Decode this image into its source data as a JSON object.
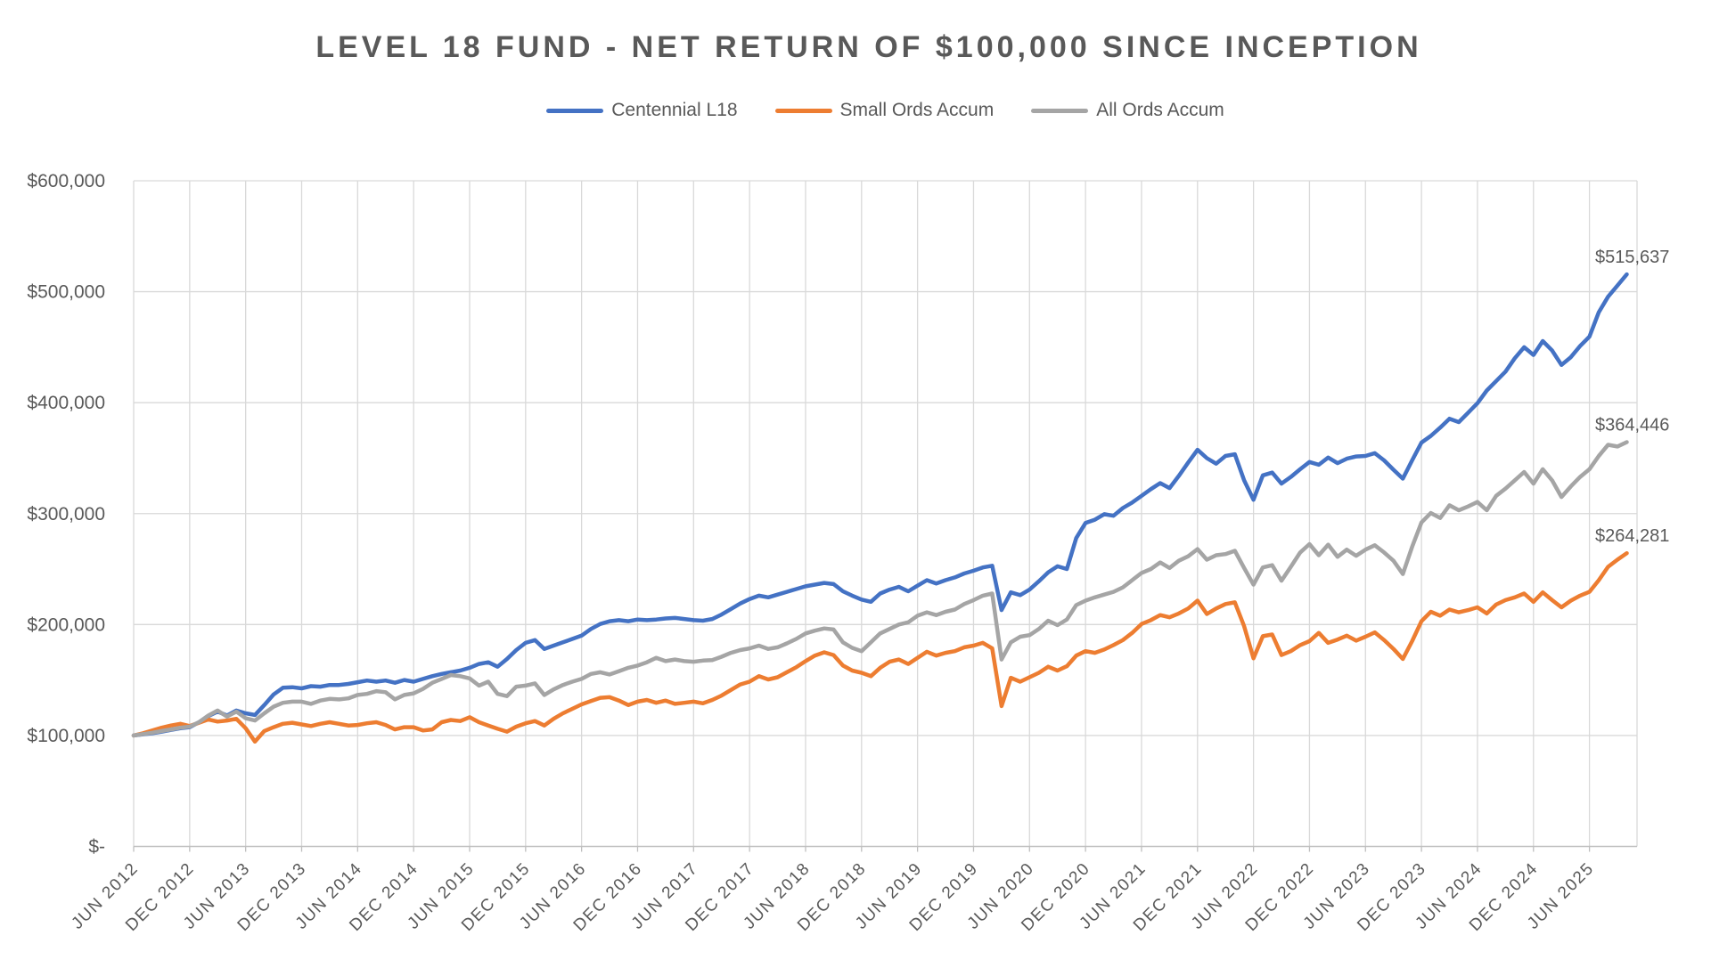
{
  "title": "LEVEL 18 FUND - NET RETURN OF $100,000 SINCE INCEPTION",
  "legend": [
    {
      "label": "Centennial L18",
      "color": "#4472C4"
    },
    {
      "label": "Small Ords Accum",
      "color": "#ED7D31"
    },
    {
      "label": "All Ords Accum",
      "color": "#A5A5A5"
    }
  ],
  "chart_data": {
    "type": "line",
    "title": "LEVEL 18 FUND - NET RETURN OF $100,000 SINCE INCEPTION",
    "ylabel": "",
    "xlabel": "",
    "ylim": [
      0,
      600000
    ],
    "grid": true,
    "legend_position": "top",
    "x_sampling": "monthly from JUN 2012 to OCT 2025",
    "y_ticks": [
      {
        "label": "$600,000",
        "value": 600000
      },
      {
        "label": "$500,000",
        "value": 500000
      },
      {
        "label": "$400,000",
        "value": 400000
      },
      {
        "label": "$300,000",
        "value": 300000
      },
      {
        "label": "$200,000",
        "value": 200000
      },
      {
        "label": "$100,000",
        "value": 100000
      },
      {
        "label": "$-",
        "value": 0
      }
    ],
    "x_tick_labels": [
      "JUN 2012",
      "DEC 2012",
      "JUN 2013",
      "DEC 2013",
      "JUN 2014",
      "DEC 2014",
      "JUN 2015",
      "DEC 2015",
      "JUN 2016",
      "DEC 2016",
      "JUN 2017",
      "DEC 2017",
      "JUN 2018",
      "DEC 2018",
      "JUN 2019",
      "DEC 2019",
      "JUN 2020",
      "DEC 2020",
      "JUN 2021",
      "DEC 2021",
      "JUN 2022",
      "DEC 2022",
      "JUN 2023",
      "DEC 2023",
      "JUN 2024",
      "DEC 2024",
      "JUN 2025"
    ],
    "series": [
      {
        "name": "Centennial L18",
        "color": "#4472C4",
        "end_label": "$515,637",
        "end_value": 515637,
        "values": [
          100000,
          101000,
          102000,
          103500,
          105000,
          106500,
          107500,
          112000,
          117500,
          121500,
          118000,
          122500,
          120000,
          118500,
          127500,
          137000,
          143000,
          143500,
          142500,
          144500,
          144000,
          145500,
          145500,
          146500,
          148000,
          149500,
          148500,
          149500,
          147500,
          150000,
          148500,
          151000,
          153500,
          155500,
          157000,
          158500,
          161000,
          164500,
          166000,
          162000,
          169000,
          177000,
          183500,
          186000,
          178000,
          181000,
          184000,
          187000,
          190000,
          196000,
          200500,
          203000,
          204000,
          203000,
          204500,
          204000,
          204500,
          205500,
          206000,
          205000,
          204000,
          203500,
          205000,
          209000,
          214000,
          219000,
          223000,
          226000,
          224500,
          227000,
          229500,
          232000,
          234500,
          236000,
          237500,
          236500,
          230000,
          226000,
          222500,
          220500,
          228000,
          231500,
          234000,
          230000,
          235000,
          240000,
          237000,
          240000,
          242500,
          246000,
          248500,
          251500,
          253000,
          213000,
          229000,
          226500,
          231500,
          239000,
          247000,
          252500,
          250000,
          278000,
          291500,
          294500,
          299500,
          298000,
          305000,
          310000,
          316000,
          322000,
          327500,
          323000,
          334000,
          346000,
          357500,
          350000,
          345000,
          352000,
          353500,
          330000,
          312500,
          334500,
          337000,
          327000,
          333000,
          340000,
          346500,
          344000,
          350500,
          345500,
          349500,
          351500,
          352000,
          354500,
          348000,
          339500,
          331500,
          348000,
          364000,
          370000,
          377500,
          385500,
          382500,
          391000,
          399500,
          411000,
          419500,
          428000,
          440000,
          450000,
          443000,
          455500,
          447000,
          434000,
          441000,
          451000,
          459500,
          481500,
          495500,
          505500,
          515637
        ]
      },
      {
        "name": "Small Ords Accum",
        "color": "#ED7D31",
        "end_label": "$264,281",
        "end_value": 264281,
        "values": [
          100000,
          102000,
          104500,
          107000,
          109000,
          110500,
          108500,
          111500,
          114500,
          112500,
          113500,
          115000,
          106500,
          94500,
          104000,
          107500,
          110500,
          111500,
          110000,
          108500,
          110500,
          112000,
          110500,
          109000,
          109500,
          111000,
          112000,
          109500,
          105500,
          107500,
          107500,
          104500,
          105500,
          112000,
          114000,
          113000,
          116500,
          112000,
          109000,
          106000,
          103500,
          108000,
          111000,
          113000,
          109000,
          115000,
          120000,
          124000,
          128000,
          131000,
          134000,
          134500,
          131500,
          127500,
          130500,
          132000,
          129500,
          131500,
          128500,
          129500,
          130500,
          129000,
          132000,
          136000,
          141000,
          146000,
          148500,
          153500,
          150500,
          152500,
          157000,
          161500,
          167000,
          172000,
          175000,
          172500,
          163000,
          158500,
          156500,
          153500,
          161000,
          166500,
          168500,
          164500,
          170000,
          175500,
          172000,
          174500,
          176000,
          179500,
          181000,
          183500,
          178500,
          126500,
          152000,
          148500,
          152500,
          156500,
          162000,
          158500,
          162500,
          172000,
          176000,
          174500,
          177500,
          181500,
          186000,
          192500,
          200500,
          204000,
          208500,
          206500,
          210000,
          214500,
          221500,
          209500,
          214500,
          218500,
          220000,
          198500,
          169500,
          189500,
          191000,
          172500,
          176000,
          181500,
          185000,
          192500,
          183500,
          186500,
          190000,
          185500,
          189000,
          193000,
          186000,
          178000,
          169000,
          185000,
          203000,
          211500,
          208000,
          213500,
          211000,
          213000,
          215500,
          210000,
          218000,
          222000,
          224500,
          228000,
          220500,
          229000,
          222000,
          215500,
          221500,
          226000,
          229500,
          240000,
          252000,
          258500,
          264281
        ]
      },
      {
        "name": "All Ords Accum",
        "color": "#A5A5A5",
        "end_label": "$364,446",
        "end_value": 364446,
        "values": [
          100000,
          101200,
          102500,
          104000,
          105500,
          107000,
          108000,
          112000,
          118000,
          122500,
          117000,
          121500,
          115500,
          113500,
          120000,
          126000,
          129500,
          130500,
          130500,
          128500,
          131500,
          133000,
          132500,
          133500,
          136500,
          137500,
          140000,
          139000,
          132500,
          136500,
          138000,
          142000,
          147500,
          151000,
          154500,
          153500,
          151500,
          145000,
          148500,
          137500,
          135500,
          144000,
          145000,
          147000,
          136500,
          141500,
          145500,
          148500,
          151000,
          155500,
          157000,
          155000,
          158000,
          161000,
          163000,
          166000,
          170000,
          167000,
          168500,
          167000,
          166500,
          167500,
          168000,
          171000,
          174500,
          177000,
          178500,
          181000,
          178000,
          179500,
          183000,
          187000,
          192000,
          194500,
          196500,
          195500,
          184000,
          179000,
          176000,
          184000,
          192000,
          196000,
          200000,
          202000,
          208000,
          211000,
          208500,
          211500,
          213500,
          218500,
          222000,
          226000,
          228000,
          168500,
          184000,
          189000,
          190500,
          196000,
          203500,
          199500,
          204500,
          217500,
          221500,
          224500,
          227000,
          229500,
          233500,
          240000,
          246500,
          250000,
          256000,
          251000,
          257500,
          261500,
          268000,
          258500,
          262500,
          263500,
          266500,
          251000,
          236000,
          251500,
          253500,
          239500,
          252000,
          265000,
          272500,
          262500,
          272000,
          261000,
          267500,
          262000,
          267500,
          271500,
          265000,
          257500,
          245500,
          270000,
          292000,
          300500,
          296000,
          307500,
          303000,
          306500,
          310500,
          303000,
          316000,
          322500,
          330000,
          337500,
          327000,
          340000,
          330000,
          315000,
          324500,
          333000,
          340000,
          352000,
          362000,
          360500,
          364446
        ]
      }
    ]
  }
}
